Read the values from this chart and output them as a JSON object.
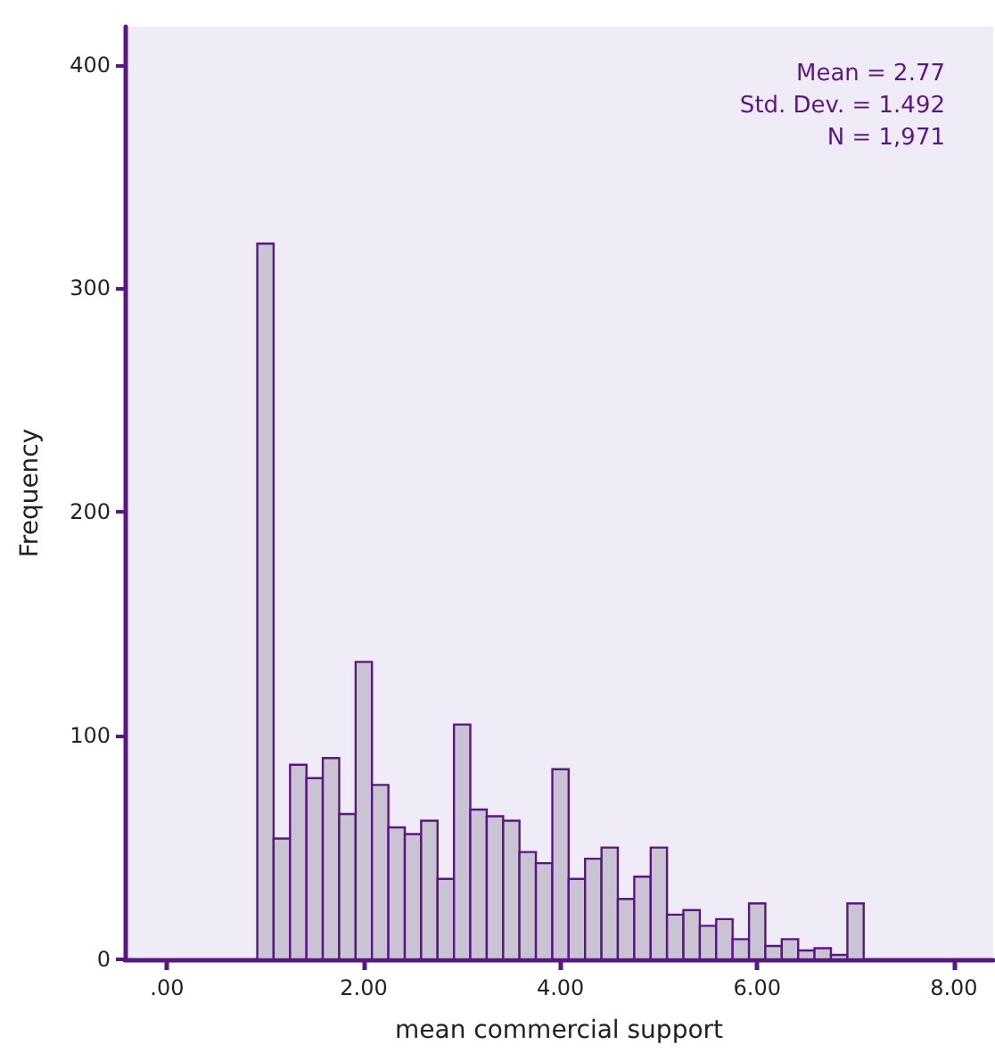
{
  "chart_data": {
    "type": "histogram",
    "xlabel": "mean commercial support",
    "ylabel": "Frequency",
    "bins": [
      0.917,
      1.083,
      1.25,
      1.417,
      1.583,
      1.75,
      1.917,
      2.083,
      2.25,
      2.417,
      2.583,
      2.75,
      2.917,
      3.083,
      3.25,
      3.417,
      3.583,
      3.75,
      3.917,
      4.083,
      4.25,
      4.417,
      4.583,
      4.75,
      4.917,
      5.083,
      5.25,
      5.417,
      5.583,
      5.75,
      5.917,
      6.083,
      6.25,
      6.417,
      6.583,
      6.75,
      6.917,
      7.083
    ],
    "values": [
      320,
      54,
      87,
      81,
      90,
      65,
      133,
      78,
      59,
      56,
      62,
      36,
      105,
      67,
      64,
      62,
      48,
      43,
      85,
      36,
      45,
      50,
      27,
      37,
      50,
      20,
      22,
      15,
      18,
      9,
      25,
      6,
      9,
      4,
      5,
      2,
      25
    ],
    "color": "#c9c3d4",
    "xlim": [
      -0.43,
      8.4
    ],
    "xticks": [
      {
        "value": 0,
        "label": ".00"
      },
      {
        "value": 2,
        "label": "2.00"
      },
      {
        "value": 4,
        "label": "4.00"
      },
      {
        "value": 6,
        "label": "6.00"
      },
      {
        "value": 8,
        "label": "8.00"
      }
    ],
    "ylim": [
      0,
      417
    ],
    "yticks": [
      0,
      100,
      200,
      300,
      400
    ],
    "annotations": [
      "Mean = 2.77",
      "Std. Dev. = 1.492",
      "N = 1,971"
    ],
    "grid": false
  }
}
